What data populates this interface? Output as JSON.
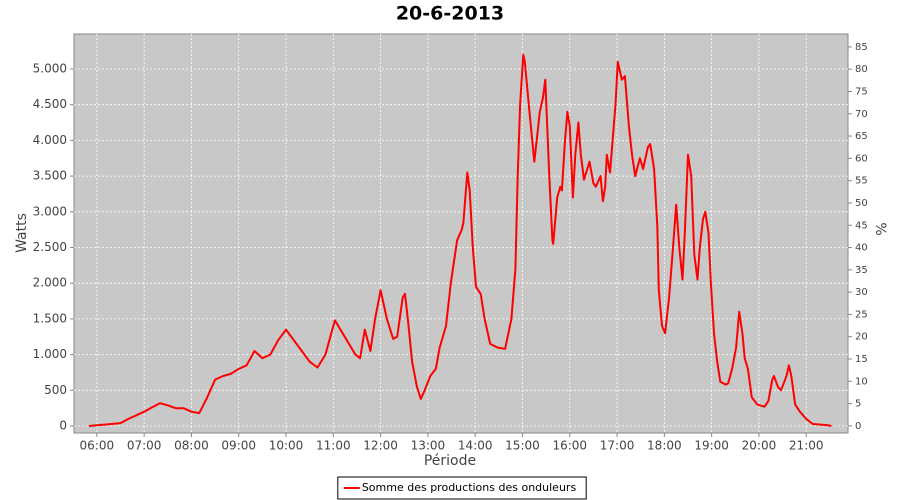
{
  "chart_data": {
    "type": "line",
    "title": "20-6-2013",
    "x_label": "Période",
    "y_label": "Watts",
    "y2_label": "%",
    "x": [
      "05:50",
      "06:00",
      "06:10",
      "06:20",
      "06:30",
      "06:40",
      "06:50",
      "07:00",
      "07:10",
      "07:20",
      "07:30",
      "07:40",
      "07:50",
      "08:00",
      "08:10",
      "08:20",
      "08:30",
      "08:40",
      "08:50",
      "09:00",
      "09:10",
      "09:20",
      "09:30",
      "09:40",
      "09:50",
      "10:00",
      "10:10",
      "10:20",
      "10:30",
      "10:40",
      "10:50",
      "11:00",
      "11:02",
      "11:28",
      "11:34",
      "11:40",
      "11:47",
      "11:53",
      "12:00",
      "12:08",
      "12:16",
      "12:21",
      "12:28",
      "12:31",
      "12:35",
      "12:40",
      "12:46",
      "12:51",
      "12:56",
      "13:03",
      "13:10",
      "13:15",
      "13:23",
      "13:29",
      "13:37",
      "13:43",
      "13:45",
      "13:50",
      "13:53",
      "13:57",
      "14:01",
      "14:07",
      "14:12",
      "14:19",
      "14:28",
      "14:38",
      "14:46",
      "14:51",
      "14:54",
      "14:57",
      "15:01",
      "15:03",
      "15:08",
      "15:15",
      "15:18",
      "15:22",
      "15:26",
      "15:29",
      "15:31",
      "15:34",
      "15:38",
      "15:39",
      "15:44",
      "15:48",
      "15:50",
      "15:54",
      "15:57",
      "16:00",
      "16:04",
      "16:07",
      "16:11",
      "16:14",
      "16:18",
      "16:25",
      "16:30",
      "16:33",
      "16:39",
      "16:42",
      "16:45",
      "16:47",
      "16:51",
      "16:58",
      "17:01",
      "17:06",
      "17:10",
      "17:15",
      "17:19",
      "17:23",
      "17:29",
      "17:33",
      "17:39",
      "17:42",
      "17:47",
      "17:51",
      "17:53",
      "17:57",
      "18:01",
      "18:06",
      "18:11",
      "18:15",
      "18:19",
      "18:23",
      "18:26",
      "18:30",
      "18:34",
      "18:38",
      "18:42",
      "18:45",
      "18:49",
      "18:52",
      "18:56",
      "18:59",
      "19:03",
      "19:07",
      "19:11",
      "19:18",
      "19:21",
      "19:26",
      "19:31",
      "19:35",
      "19:39",
      "19:42",
      "19:46",
      "19:51",
      "19:58",
      "20:07",
      "20:12",
      "20:17",
      "20:19",
      "20:24",
      "20:28",
      "20:35",
      "20:38",
      "20:41",
      "20:46",
      "20:52",
      "21:00",
      "21:08",
      "21:18",
      "21:28",
      "21:32"
    ],
    "series": [
      {
        "name": "Somme des productions des onduleurs",
        "color": "#ff0000",
        "values": [
          0,
          10,
          20,
          30,
          40,
          100,
          150,
          200,
          260,
          320,
          290,
          250,
          250,
          200,
          180,
          400,
          650,
          700,
          730,
          800,
          850,
          1050,
          950,
          1000,
          1200,
          1350,
          1200,
          1050,
          900,
          820,
          1000,
          1400,
          1480,
          1000,
          950,
          1350,
          1050,
          1500,
          1900,
          1500,
          1220,
          1250,
          1800,
          1850,
          1450,
          900,
          550,
          380,
          500,
          700,
          800,
          1100,
          1400,
          2000,
          2600,
          2750,
          2850,
          3550,
          3300,
          2500,
          1950,
          1850,
          1500,
          1150,
          1100,
          1080,
          1500,
          2200,
          3500,
          4500,
          5200,
          5100,
          4500,
          3700,
          4000,
          4400,
          4600,
          4850,
          4300,
          3500,
          2600,
          2550,
          3200,
          3350,
          3300,
          4000,
          4400,
          4200,
          3200,
          3800,
          4250,
          3800,
          3450,
          3700,
          3400,
          3350,
          3500,
          3150,
          3350,
          3800,
          3550,
          4500,
          5100,
          4850,
          4900,
          4200,
          3800,
          3500,
          3750,
          3600,
          3900,
          3950,
          3600,
          2800,
          1900,
          1400,
          1300,
          1800,
          2500,
          3100,
          2500,
          2050,
          2700,
          3800,
          3500,
          2400,
          2050,
          2500,
          2900,
          3000,
          2700,
          2000,
          1300,
          900,
          620,
          580,
          600,
          800,
          1100,
          1600,
          1300,
          950,
          800,
          400,
          300,
          270,
          350,
          650,
          700,
          550,
          500,
          700,
          850,
          700,
          300,
          200,
          100,
          30,
          20,
          10,
          0
        ]
      }
    ],
    "xlim": [
      "05:31",
      "21:53"
    ],
    "xticks": [
      "06:00",
      "07:00",
      "08:00",
      "09:00",
      "10:00",
      "11:00",
      "12:00",
      "13:00",
      "14:00",
      "15:00",
      "16:00",
      "17:00",
      "18:00",
      "19:00",
      "20:00",
      "21:00"
    ],
    "ylim": [
      -98,
      5490
    ],
    "yticks": [
      0,
      500,
      {
        "value": 1000,
        "label": "1.000"
      },
      {
        "value": 1500,
        "label": "1.500"
      },
      {
        "value": 2000,
        "label": "2.000"
      },
      {
        "value": 2500,
        "label": "2.500"
      },
      {
        "value": 3000,
        "label": "3.000"
      },
      {
        "value": 3500,
        "label": "3.500"
      },
      {
        "value": 4000,
        "label": "4.000"
      },
      {
        "value": 4500,
        "label": "4.500"
      },
      {
        "value": 5000,
        "label": "5.000"
      }
    ],
    "y2lim": [
      -1.6,
      87.9
    ],
    "y2ticks": [
      0,
      5,
      10,
      15,
      20,
      25,
      30,
      35,
      40,
      45,
      50,
      55,
      60,
      65,
      70,
      75,
      80,
      85
    ],
    "grid": true,
    "legend": "bottom",
    "background": "#c8c8c8"
  }
}
